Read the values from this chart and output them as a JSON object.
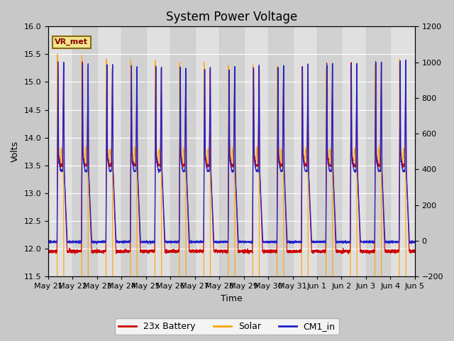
{
  "title": "System Power Voltage",
  "xlabel": "Time",
  "ylabel_left": "Volts",
  "ylabel_right": "",
  "ylim_left": [
    11.5,
    16.0
  ],
  "ylim_right": [
    -200,
    1200
  ],
  "yticks_left": [
    11.5,
    12.0,
    12.5,
    13.0,
    13.5,
    14.0,
    14.5,
    15.0,
    15.5,
    16.0
  ],
  "yticks_right": [
    -200,
    0,
    200,
    400,
    600,
    800,
    1000,
    1200
  ],
  "legend_labels": [
    "23x Battery",
    "Solar",
    "CM1_in"
  ],
  "legend_colors": [
    "#cc0000",
    "#ffa500",
    "#2222cc"
  ],
  "annotation_text": "VR_met",
  "annotation_color": "#8B0000",
  "n_days": 15,
  "day_labels": [
    "May 21",
    "May 22",
    "May 23",
    "May 24",
    "May 25",
    "May 26",
    "May 27",
    "May 28",
    "May 29",
    "May 30",
    "May 31",
    "Jun 1",
    "Jun 2",
    "Jun 3",
    "Jun 4",
    "Jun 5"
  ],
  "title_fontsize": 12,
  "axis_fontsize": 9,
  "tick_fontsize": 8,
  "legend_fontsize": 9,
  "fig_facecolor": "#c8c8c8",
  "ax_facecolor": "#e0e0e0",
  "band_color_light": "#d8d8d8",
  "band_color_dark": "#c0c0c0"
}
